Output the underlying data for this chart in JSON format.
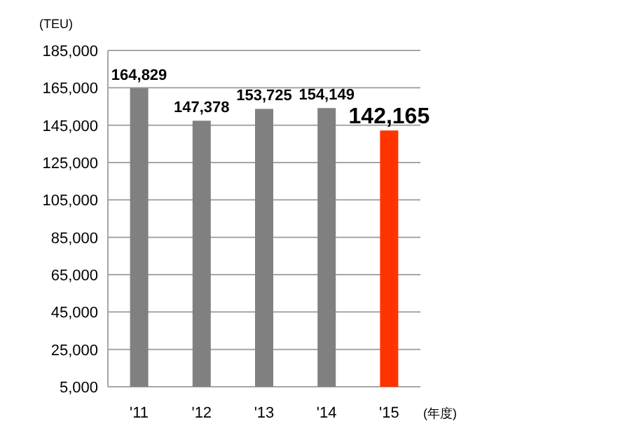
{
  "chart_data": {
    "type": "bar",
    "ylabel": "(TEU)",
    "xlabel": "(年度)",
    "categories": [
      "'11",
      "'12",
      "'13",
      "'14",
      "'15"
    ],
    "values": [
      164829,
      147378,
      153725,
      154149,
      142165
    ],
    "colors": [
      "#808080",
      "#808080",
      "#808080",
      "#808080",
      "#ff3300"
    ],
    "value_labels": [
      "164,829",
      "147,378",
      "153,725",
      "154,149",
      "142,165"
    ],
    "ylim": [
      5000,
      185000
    ],
    "yticks": [
      {
        "value": 5000,
        "label": "5,000"
      },
      {
        "value": 25000,
        "label": "25,000"
      },
      {
        "value": 45000,
        "label": "45,000"
      },
      {
        "value": 65000,
        "label": "65,000"
      },
      {
        "value": 85000,
        "label": "85,000"
      },
      {
        "value": 105000,
        "label": "105,000"
      },
      {
        "value": 125000,
        "label": "125,000"
      },
      {
        "value": 145000,
        "label": "145,000"
      },
      {
        "value": 165000,
        "label": "165,000"
      },
      {
        "value": 185000,
        "label": "185,000"
      }
    ],
    "grid": "y"
  }
}
